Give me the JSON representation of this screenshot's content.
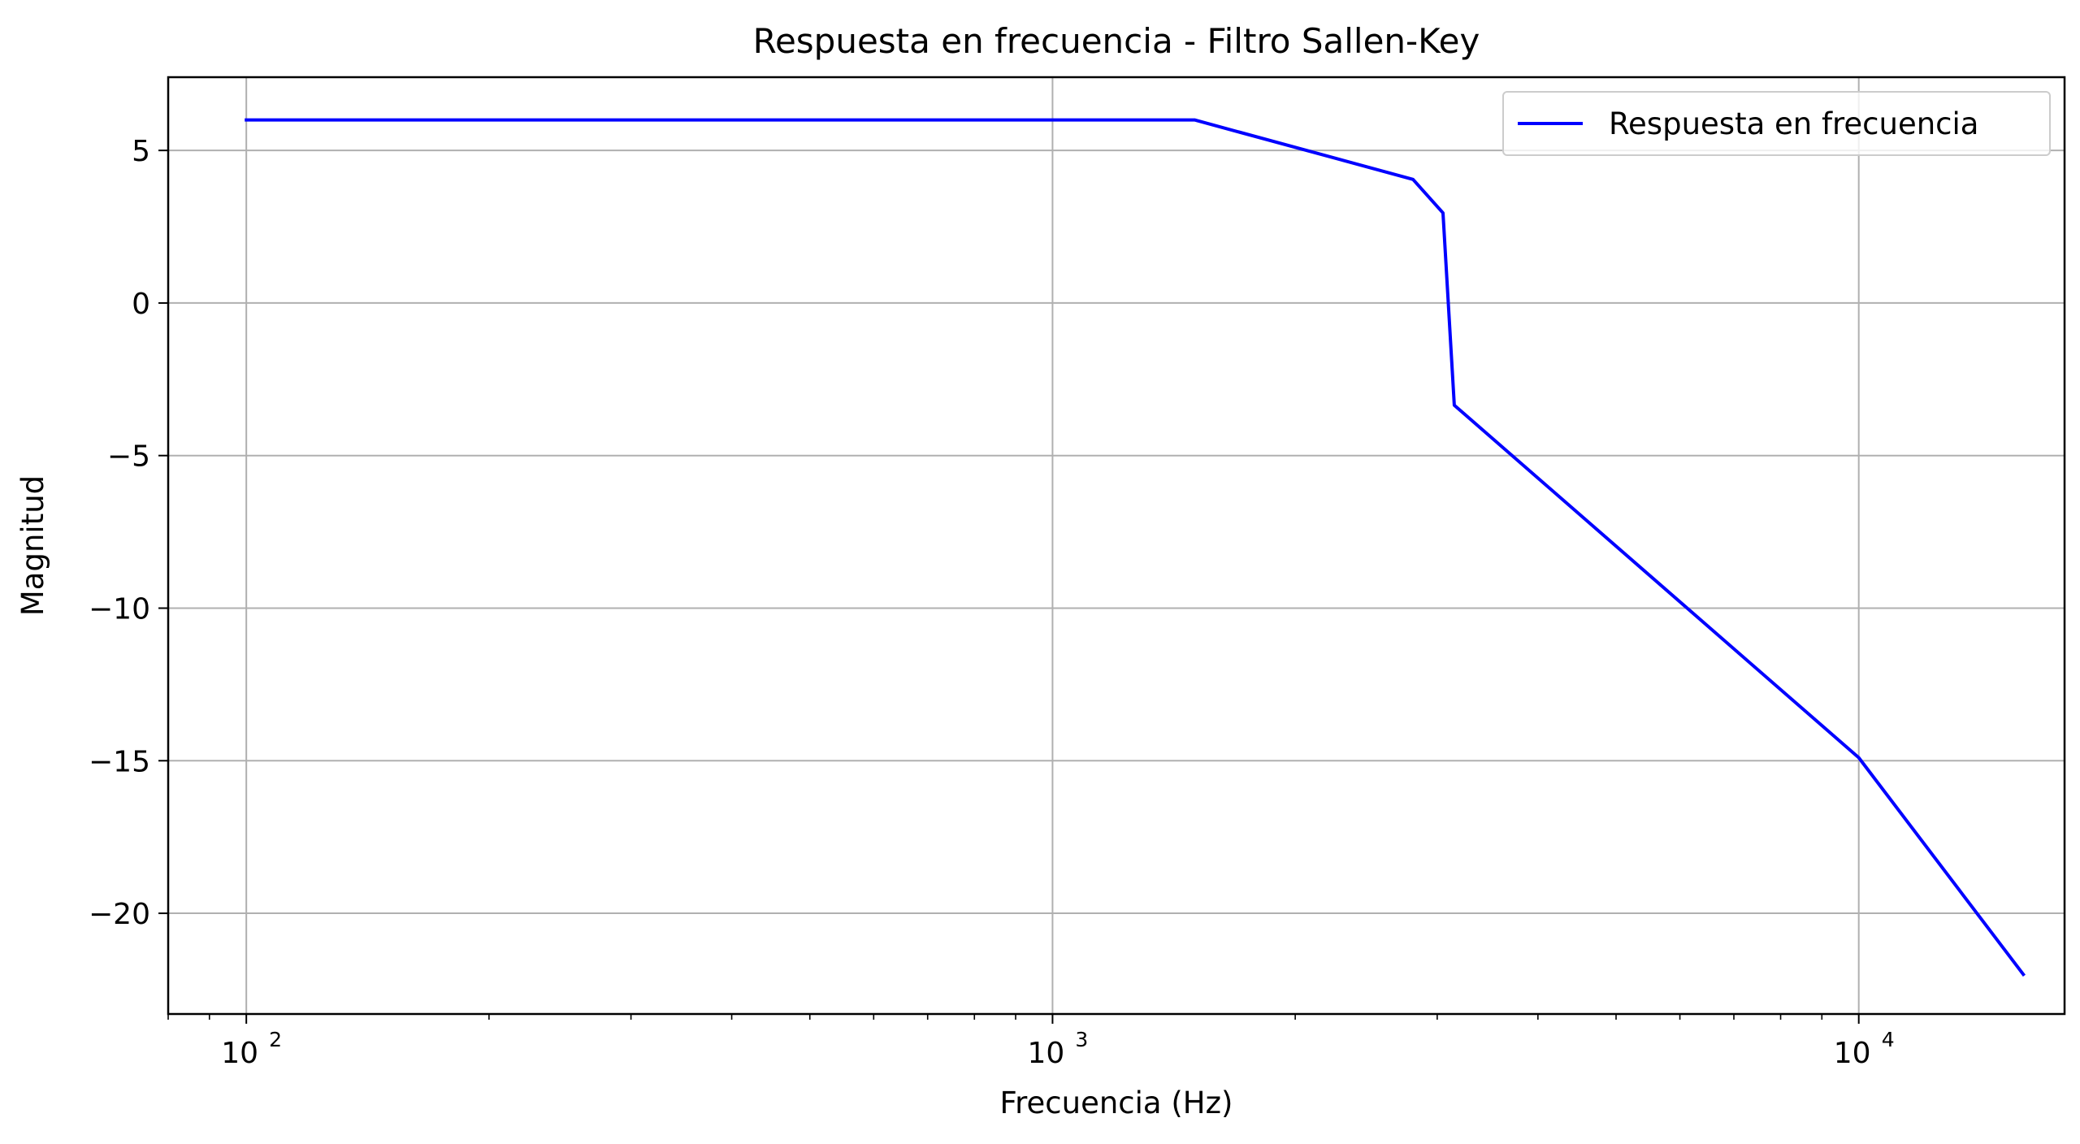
{
  "chart_data": {
    "type": "line",
    "title": "Respuesta en frecuencia - Filtro Sallen-Key",
    "xlabel": "Frecuencia (Hz)",
    "ylabel": "Magnitud",
    "x_scale": "log",
    "xlim": [
      80,
      18000
    ],
    "ylim": [
      -23.3,
      7.4
    ],
    "x_ticks": [
      {
        "value": 100,
        "base": "10",
        "exp": "2"
      },
      {
        "value": 1000,
        "base": "10",
        "exp": "3"
      },
      {
        "value": 10000,
        "base": "10",
        "exp": "4"
      }
    ],
    "y_ticks": [
      {
        "value": 5,
        "label": "5"
      },
      {
        "value": 0,
        "label": "0"
      },
      {
        "value": -5,
        "label": "−5"
      },
      {
        "value": -10,
        "label": "−10"
      },
      {
        "value": -15,
        "label": "−15"
      },
      {
        "value": -20,
        "label": "−20"
      }
    ],
    "grid": true,
    "legend_position": "top-right",
    "series": [
      {
        "name": "Respuesta en frecuencia",
        "color": "#0000ff",
        "x": [
          100,
          1500,
          2800,
          3050,
          3150,
          10000,
          16000
        ],
        "y": [
          6.0,
          6.0,
          4.05,
          2.95,
          -3.35,
          -14.9,
          -22.0
        ]
      }
    ]
  }
}
